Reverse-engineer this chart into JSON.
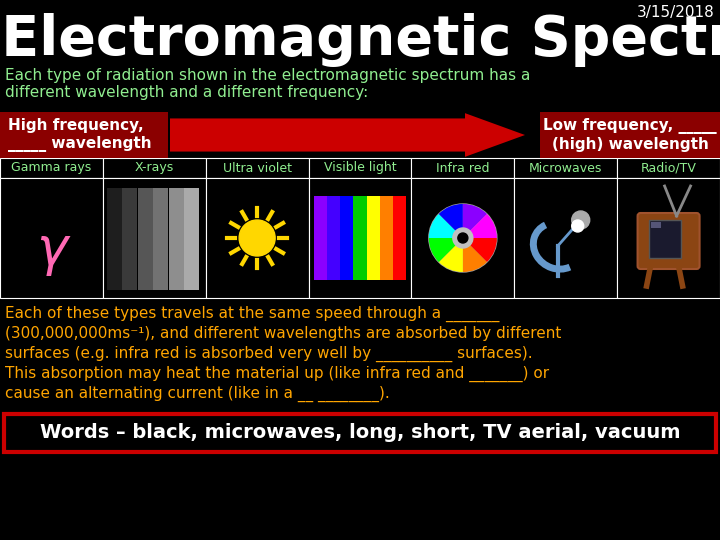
{
  "background_color": "#000000",
  "title": "The Electromagnetic Spectrum",
  "date": "3/15/2018",
  "subtitle": "Each type of radiation shown in the electromagnetic spectrum has a\ndifferent wavelength and a different frequency:",
  "left_box_text": "High frequency,\n_____ wavelength",
  "right_box_text": "Low frequency, _____\n(high) wavelength",
  "box_color": "#8B0000",
  "arrow_color": "#cc0000",
  "categories": [
    "Gamma rays",
    "X-rays",
    "Ultra violet",
    "Visible light",
    "Infra red",
    "Microwaves",
    "Radio/TV"
  ],
  "body_text_line1": "Each of these types travels at the same speed through a _______",
  "body_text_line2": "(300,000,000ms⁻¹), and different wavelengths are absorbed by different",
  "body_text_line3": "surfaces (e.g. infra red is absorbed very well by __________ surfaces).",
  "body_text_line4": "This absorption may heat the material up (like infra red and _______) or",
  "body_text_line5": "cause an alternating current (like in a __ ________).",
  "words_box_text": "Words – black, microwaves, long, short, TV aerial, vacuum",
  "words_box_border": "#cc0000",
  "text_color": "#ffffff",
  "subtitle_color": "#90EE90",
  "orange_text_color": "#ffa500",
  "title_fontsize": 40,
  "date_fontsize": 11,
  "subtitle_fontsize": 11,
  "body_fontsize": 11,
  "cat_fontsize": 9,
  "words_fontsize": 14
}
